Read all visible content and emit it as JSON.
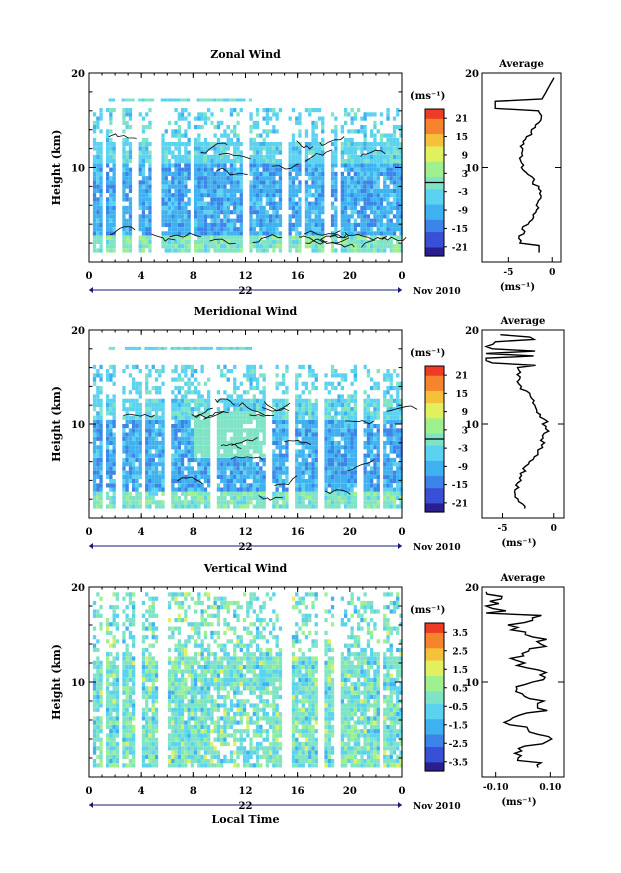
{
  "chart_data": [
    {
      "type": "heatmap",
      "title": "Zonal Wind",
      "ylabel": "Height (km)",
      "y_ticks": [
        "20",
        "10"
      ],
      "ylim": [
        0,
        20
      ],
      "x_ticks": [
        "0",
        "4",
        "8",
        "12",
        "16",
        "20",
        "0"
      ],
      "date_label": "22",
      "month_label": "Nov 2010",
      "colorbar": {
        "unit": "(ms⁻¹)",
        "ticks": [
          "21",
          "15",
          "9",
          "3",
          "-3",
          "-9",
          "-15",
          "-21"
        ],
        "range": [
          -24,
          24
        ]
      },
      "average": {
        "title": "Average",
        "xlabel": "(ms⁻¹)",
        "x_ticks": [
          "-5",
          "0"
        ],
        "xlim": [
          -8,
          1
        ],
        "y_ticks": [
          "20",
          "10"
        ]
      }
    },
    {
      "type": "heatmap",
      "title": "Meridional Wind",
      "ylabel": "Height (km)",
      "y_ticks": [
        "20",
        "10"
      ],
      "ylim": [
        0,
        20
      ],
      "x_ticks": [
        "0",
        "4",
        "8",
        "12",
        "16",
        "20",
        "0"
      ],
      "date_label": "22",
      "month_label": "Nov 2010",
      "colorbar": {
        "unit": "(ms⁻¹)",
        "ticks": [
          "21",
          "15",
          "9",
          "3",
          "-3",
          "-9",
          "-15",
          "-21"
        ],
        "range": [
          -24,
          24
        ]
      },
      "average": {
        "title": "Average",
        "xlabel": "(ms⁻¹)",
        "x_ticks": [
          "-5",
          "0"
        ],
        "xlim": [
          -7,
          1
        ],
        "y_ticks": [
          "20",
          "10"
        ]
      }
    },
    {
      "type": "heatmap",
      "title": "Vertical Wind",
      "ylabel": "Height (km)",
      "xlabel": "Local Time",
      "y_ticks": [
        "20",
        "10"
      ],
      "ylim": [
        0,
        20
      ],
      "x_ticks": [
        "0",
        "4",
        "8",
        "12",
        "16",
        "20",
        "0"
      ],
      "date_label": "22",
      "month_label": "Nov 2010",
      "colorbar": {
        "unit": "(ms⁻¹)",
        "ticks": [
          "3.5",
          "2.5",
          "1.5",
          "0.5",
          "-0.5",
          "-1.5",
          "-2.5",
          "-3.5"
        ],
        "range": [
          -4,
          4
        ]
      },
      "average": {
        "title": "Average",
        "xlabel": "(ms⁻¹)",
        "x_ticks": [
          "-0.10",
          "0.10"
        ],
        "xlim": [
          -0.15,
          0.15
        ],
        "y_ticks": [
          "20",
          "10"
        ]
      }
    }
  ],
  "colors": {
    "scale": [
      "#2a1f8f",
      "#3850d6",
      "#3c84e8",
      "#3fb1f0",
      "#5ad2f0",
      "#7fe3c6",
      "#9ff08f",
      "#e2f060",
      "#f5c13a",
      "#f5842d",
      "#ee3b26"
    ]
  }
}
